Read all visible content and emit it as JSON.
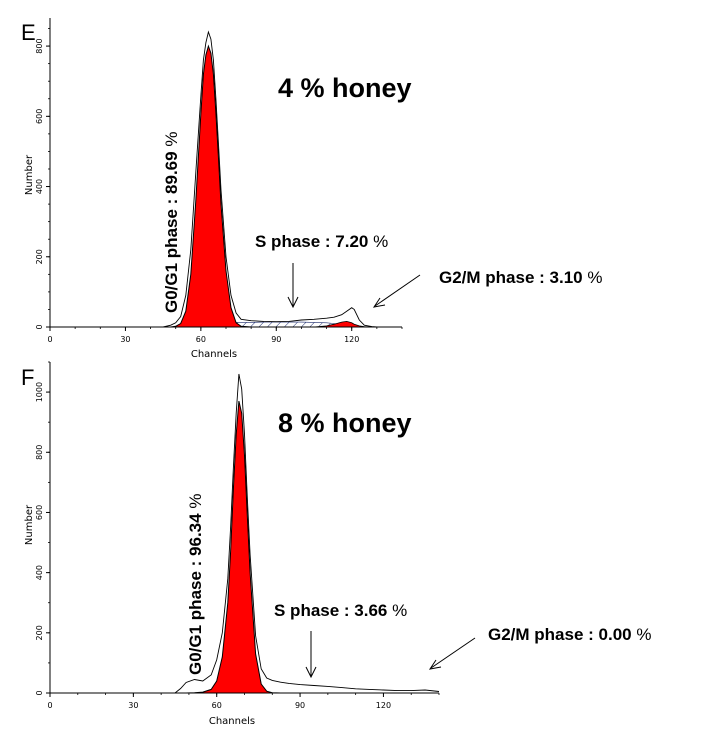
{
  "chart_data": [
    {
      "type": "area",
      "panel": "E",
      "condition": "4 % honey",
      "xlabel": "Channels",
      "ylabel": "Number",
      "xlim": [
        0,
        140
      ],
      "ylim": [
        0,
        880
      ],
      "xticks": [
        "0",
        "30",
        "60",
        "90",
        "120"
      ],
      "yticks": [
        "0",
        "200",
        "400",
        "600",
        "800"
      ],
      "annotations": {
        "g0g1": {
          "label": "G0/G1 phase : 89.69",
          "pct": "%"
        },
        "s": {
          "label": "S phase : 7.20",
          "pct": "%"
        },
        "g2m": {
          "label": "G2/M phase : 3.10",
          "pct": "%"
        }
      },
      "series": {
        "x": [
          45,
          48,
          50,
          52,
          54,
          56,
          58,
          60,
          61,
          62,
          63,
          64,
          65,
          66,
          67,
          68,
          70,
          72,
          74,
          76,
          80,
          85,
          90,
          95,
          100,
          105,
          110,
          113,
          116,
          118,
          120,
          121,
          123,
          125,
          128,
          130
        ],
        "histogram": [
          0,
          5,
          12,
          30,
          90,
          220,
          440,
          660,
          760,
          810,
          840,
          820,
          760,
          650,
          520,
          390,
          200,
          90,
          40,
          22,
          18,
          16,
          15,
          16,
          20,
          22,
          25,
          28,
          35,
          45,
          55,
          50,
          20,
          5,
          1,
          0
        ],
        "g0g1_fit": [
          0,
          0,
          2,
          10,
          45,
          150,
          360,
          610,
          720,
          775,
          800,
          780,
          720,
          610,
          480,
          350,
          160,
          55,
          12,
          2,
          0,
          0,
          0,
          0,
          0,
          0,
          0,
          0,
          0,
          0,
          0,
          0,
          0,
          0,
          0,
          0
        ],
        "g2m_fit": [
          0,
          0,
          0,
          0,
          0,
          0,
          0,
          0,
          0,
          0,
          0,
          0,
          0,
          0,
          0,
          0,
          0,
          0,
          0,
          0,
          0,
          0,
          0,
          0,
          0,
          0,
          3,
          8,
          14,
          16,
          12,
          8,
          3,
          1,
          0,
          0
        ],
        "s_fit": [
          0,
          0,
          1,
          2,
          4,
          6,
          8,
          10,
          10,
          11,
          11,
          11,
          12,
          12,
          12,
          12,
          12,
          13,
          13,
          13,
          13,
          14,
          14,
          14,
          14,
          13,
          12,
          10,
          7,
          5,
          3,
          2,
          1,
          0,
          0,
          0
        ]
      }
    },
    {
      "type": "area",
      "panel": "F",
      "condition": "8 % honey",
      "xlabel": "Channels",
      "ylabel": "Number",
      "xlim": [
        0,
        140
      ],
      "ylim": [
        0,
        1100
      ],
      "xticks": [
        "0",
        "30",
        "60",
        "90",
        "120"
      ],
      "yticks": [
        "0",
        "200",
        "400",
        "600",
        "800",
        "1000"
      ],
      "annotations": {
        "g0g1": {
          "label": "G0/G1 phase : 96.34",
          "pct": "%"
        },
        "s": {
          "label": "S phase : 3.66",
          "pct": "%"
        },
        "g2m": {
          "label": "G2/M phase : 0.00",
          "pct": "%"
        }
      },
      "series": {
        "x": [
          45,
          47,
          49,
          52,
          55,
          58,
          60,
          62,
          64,
          65,
          66,
          67,
          68,
          69,
          70,
          71,
          72,
          74,
          76,
          78,
          80,
          83,
          86,
          90,
          95,
          100,
          105,
          110,
          115,
          120,
          125,
          130,
          135,
          140
        ],
        "histogram": [
          0,
          15,
          35,
          45,
          40,
          60,
          110,
          200,
          380,
          550,
          750,
          930,
          1060,
          1010,
          860,
          650,
          460,
          190,
          80,
          50,
          42,
          36,
          32,
          28,
          25,
          22,
          18,
          14,
          12,
          10,
          8,
          8,
          10,
          5
        ],
        "g0g1_fit": [
          0,
          0,
          0,
          1,
          3,
          12,
          40,
          120,
          300,
          470,
          680,
          860,
          970,
          930,
          790,
          590,
          400,
          130,
          30,
          6,
          1,
          0,
          0,
          0,
          0,
          0,
          0,
          0,
          0,
          0,
          0,
          0,
          0,
          0
        ],
        "s_fit": [
          0,
          0,
          0,
          0,
          0,
          0,
          0,
          0,
          0,
          0,
          0,
          0,
          0,
          0,
          0,
          0,
          0,
          0,
          0,
          0,
          0,
          0,
          0,
          0,
          0,
          0,
          0,
          0,
          0,
          0,
          0,
          0,
          0,
          0
        ]
      }
    }
  ]
}
